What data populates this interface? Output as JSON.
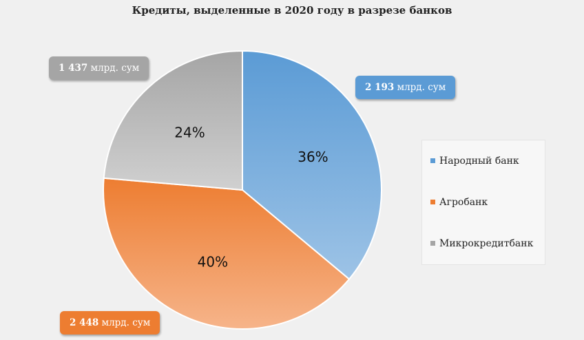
{
  "chart_data": {
    "type": "pie",
    "title": "Кредиты, выделенные в 2020 году в разрезе банков",
    "categories": [
      "Народный банк",
      "Агробанк",
      "Микрокредитбанк"
    ],
    "values": [
      2193,
      2448,
      1437
    ],
    "percent_labels": [
      "36%",
      "40%",
      "24%"
    ],
    "callout_values": [
      "2 193",
      "2 448",
      "1 437"
    ],
    "unit": "млрд. сум",
    "colors": [
      "#5b9bd5",
      "#ed7d31",
      "#a5a5a5"
    ],
    "legend_position": "right"
  }
}
